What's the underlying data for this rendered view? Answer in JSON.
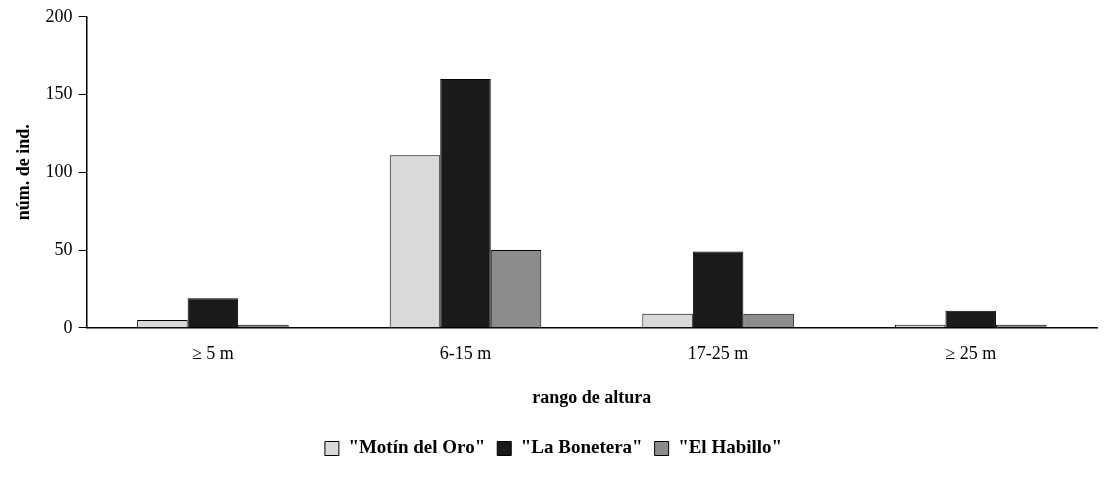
{
  "chart_data": {
    "type": "bar",
    "xlabel": "rango de altura",
    "ylabel": "núm. de ind.",
    "categories": [
      "≥ 5 m",
      "6-15 m",
      "17-25 m",
      "≥ 25 m"
    ],
    "series": [
      {
        "name": "\"Motín del Oro\"",
        "color": "#d9d9d9",
        "values": [
          5,
          111,
          9,
          2
        ]
      },
      {
        "name": "\"La Bonetera\"",
        "color": "#1a1a1a",
        "values": [
          19,
          160,
          49,
          11
        ]
      },
      {
        "name": "\"El Habillo\"",
        "color": "#8c8c8c",
        "values": [
          2,
          50,
          9,
          2
        ]
      }
    ],
    "ylim": [
      0,
      200
    ],
    "yticks": [
      0,
      50,
      100,
      150,
      200
    ],
    "grid": false,
    "legend": "bottom"
  }
}
